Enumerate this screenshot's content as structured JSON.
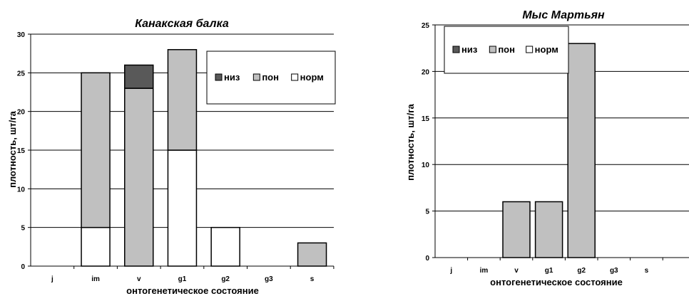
{
  "chart_data": [
    {
      "type": "bar",
      "stacked": true,
      "title": "Канакская балка",
      "xlabel": "онтогенетическое состояние",
      "ylabel": "плотность, шт/га",
      "categories": [
        "j",
        "im",
        "v",
        "g1",
        "g2",
        "g3",
        "s"
      ],
      "ylim": [
        0,
        30
      ],
      "yticks": [
        0,
        5,
        10,
        15,
        20,
        25,
        30
      ],
      "grid": true,
      "legend_position": "top-right",
      "series": [
        {
          "name": "норм",
          "color": "#ffffff",
          "values": [
            0,
            5,
            0,
            15,
            5,
            0,
            0
          ]
        },
        {
          "name": "пон",
          "color": "#c0c0c0",
          "values": [
            0,
            20,
            23,
            13,
            0,
            0,
            3
          ]
        },
        {
          "name": "низ",
          "color": "#595959",
          "values": [
            0,
            0,
            3,
            0,
            0,
            0,
            0
          ]
        }
      ],
      "legend_order": [
        "низ",
        "пон",
        "норм"
      ]
    },
    {
      "type": "bar",
      "stacked": true,
      "title": "Мыс Мартьян",
      "xlabel": "онтогенетическое состояние",
      "ylabel": "плотность, шт/га",
      "categories": [
        "j",
        "im",
        "v",
        "g1",
        "g2",
        "g3",
        "s"
      ],
      "ylim": [
        0,
        25
      ],
      "yticks": [
        0,
        5,
        10,
        15,
        20,
        25
      ],
      "grid": true,
      "legend_position": "top-left",
      "series": [
        {
          "name": "норм",
          "color": "#ffffff",
          "values": [
            0,
            0,
            0,
            0,
            0,
            0,
            0
          ]
        },
        {
          "name": "пон",
          "color": "#c0c0c0",
          "values": [
            0,
            0,
            6,
            6,
            23,
            0,
            0
          ]
        },
        {
          "name": "низ",
          "color": "#595959",
          "values": [
            0,
            0,
            0,
            0,
            0,
            0,
            0
          ]
        }
      ],
      "legend_order": [
        "низ",
        "пон",
        "норм"
      ]
    }
  ]
}
